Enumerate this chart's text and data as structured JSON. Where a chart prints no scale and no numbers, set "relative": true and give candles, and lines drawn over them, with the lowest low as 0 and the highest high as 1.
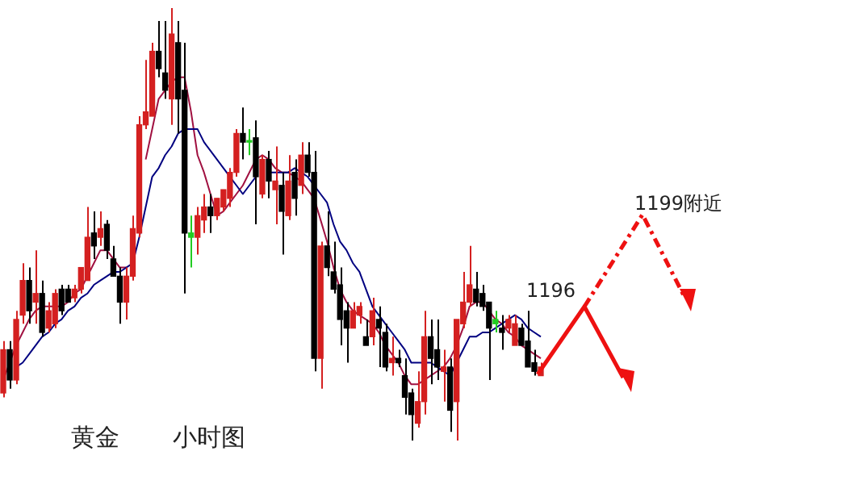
{
  "chart_data": {
    "type": "candlestick",
    "relative": true,
    "categories": [
      null,
      null,
      null,
      null,
      null,
      null,
      null,
      null,
      null,
      null,
      null,
      null,
      null,
      null,
      null,
      null,
      null,
      null,
      null,
      null,
      null,
      null,
      null,
      null,
      null,
      null,
      null,
      null,
      null,
      null,
      null,
      null,
      null,
      null,
      null,
      null,
      null,
      null,
      null,
      null,
      null,
      null,
      null,
      null,
      null,
      null,
      null,
      null,
      null,
      null,
      null,
      null,
      null,
      null,
      null,
      null,
      null,
      null,
      null,
      null,
      null,
      null,
      null,
      null,
      null,
      null,
      null,
      null,
      null,
      null,
      null,
      null,
      null,
      null,
      null,
      null,
      null,
      null,
      null,
      null,
      null,
      null,
      null,
      null
    ],
    "ohlc": [
      [
        0.11,
        0.23,
        0.1,
        0.21
      ],
      [
        0.21,
        0.23,
        0.12,
        0.14
      ],
      [
        0.14,
        0.3,
        0.13,
        0.28
      ],
      [
        0.29,
        0.41,
        0.27,
        0.37
      ],
      [
        0.37,
        0.4,
        0.27,
        0.3
      ],
      [
        0.32,
        0.44,
        0.27,
        0.34
      ],
      [
        0.34,
        0.37,
        0.24,
        0.25
      ],
      [
        0.26,
        0.32,
        0.25,
        0.3
      ],
      [
        0.27,
        0.35,
        0.26,
        0.34
      ],
      [
        0.35,
        0.36,
        0.29,
        0.3
      ],
      [
        0.35,
        0.36,
        0.32,
        0.32
      ],
      [
        0.33,
        0.36,
        0.32,
        0.35
      ],
      [
        0.35,
        0.4,
        0.34,
        0.4
      ],
      [
        0.37,
        0.54,
        0.37,
        0.47
      ],
      [
        0.48,
        0.53,
        0.42,
        0.45
      ],
      [
        0.47,
        0.53,
        0.45,
        0.49
      ],
      [
        0.5,
        0.51,
        0.42,
        0.44
      ],
      [
        0.42,
        0.45,
        0.38,
        0.38
      ],
      [
        0.38,
        0.4,
        0.27,
        0.32
      ],
      [
        0.32,
        0.4,
        0.28,
        0.38
      ],
      [
        0.38,
        0.52,
        0.37,
        0.49
      ],
      [
        0.48,
        0.75,
        0.47,
        0.73
      ],
      [
        0.73,
        0.88,
        0.72,
        0.76
      ],
      [
        0.75,
        0.92,
        0.75,
        0.9
      ],
      [
        0.9,
        0.97,
        0.84,
        0.86
      ],
      [
        0.85,
        0.97,
        0.79,
        0.81
      ],
      [
        0.79,
        1.0,
        0.73,
        0.94
      ],
      [
        0.92,
        0.97,
        0.71,
        0.79
      ],
      [
        0.81,
        0.92,
        0.34,
        0.48
      ],
      [
        0.47,
        0.52,
        0.4,
        0.48
      ],
      [
        0.47,
        0.54,
        0.43,
        0.52
      ],
      [
        0.51,
        0.57,
        0.48,
        0.54
      ],
      [
        0.54,
        0.57,
        0.48,
        0.52
      ],
      [
        0.52,
        0.56,
        0.51,
        0.56
      ],
      [
        0.54,
        0.58,
        0.53,
        0.58
      ],
      [
        0.56,
        0.63,
        0.54,
        0.62
      ],
      [
        0.62,
        0.72,
        0.61,
        0.71
      ],
      [
        0.71,
        0.77,
        0.65,
        0.69
      ],
      [
        0.69,
        0.72,
        0.66,
        0.69
      ],
      [
        0.7,
        0.74,
        0.5,
        0.61
      ],
      [
        0.57,
        0.66,
        0.56,
        0.65
      ],
      [
        0.65,
        0.67,
        0.56,
        0.6
      ],
      [
        0.58,
        0.68,
        0.5,
        0.6
      ],
      [
        0.59,
        0.62,
        0.43,
        0.53
      ],
      [
        0.52,
        0.66,
        0.51,
        0.6
      ],
      [
        0.62,
        0.65,
        0.52,
        0.56
      ],
      [
        0.59,
        0.69,
        0.57,
        0.66
      ],
      [
        0.66,
        0.69,
        0.61,
        0.62
      ],
      [
        0.62,
        0.67,
        0.16,
        0.19
      ],
      [
        0.19,
        0.46,
        0.12,
        0.45
      ],
      [
        0.45,
        0.53,
        0.38,
        0.4
      ],
      [
        0.39,
        0.46,
        0.34,
        0.35
      ],
      [
        0.36,
        0.4,
        0.22,
        0.28
      ],
      [
        0.3,
        0.32,
        0.18,
        0.26
      ],
      [
        0.26,
        0.32,
        0.26,
        0.3
      ],
      [
        0.29,
        0.32,
        0.27,
        0.31
      ],
      [
        0.24,
        0.28,
        0.22,
        0.22
      ],
      [
        0.24,
        0.33,
        0.22,
        0.3
      ],
      [
        0.28,
        0.31,
        0.17,
        0.26
      ],
      [
        0.25,
        0.27,
        0.16,
        0.17
      ],
      [
        0.18,
        0.24,
        0.15,
        0.19
      ],
      [
        0.19,
        0.21,
        0.17,
        0.18
      ],
      [
        0.15,
        0.19,
        0.06,
        0.1
      ],
      [
        0.11,
        0.12,
        0.0,
        0.06
      ],
      [
        0.04,
        0.16,
        0.03,
        0.09
      ],
      [
        0.09,
        0.3,
        0.06,
        0.24
      ],
      [
        0.24,
        0.28,
        0.13,
        0.19
      ],
      [
        0.21,
        0.28,
        0.14,
        0.17
      ],
      [
        0.16,
        0.21,
        0.09,
        0.17
      ],
      [
        0.17,
        0.19,
        0.02,
        0.07
      ],
      [
        0.09,
        0.28,
        0.0,
        0.28
      ],
      [
        0.27,
        0.39,
        0.26,
        0.32
      ],
      [
        0.32,
        0.45,
        0.31,
        0.36
      ],
      [
        0.35,
        0.39,
        0.31,
        0.32
      ],
      [
        0.34,
        0.36,
        0.3,
        0.31
      ],
      [
        0.32,
        0.32,
        0.14,
        0.26
      ],
      [
        0.27,
        0.3,
        0.25,
        0.28
      ],
      [
        0.26,
        0.29,
        0.21,
        0.25
      ],
      [
        0.26,
        0.29,
        0.25,
        0.28
      ],
      [
        0.22,
        0.29,
        0.22,
        0.27
      ],
      [
        0.26,
        0.27,
        0.22,
        0.22
      ],
      [
        0.23,
        0.3,
        0.17,
        0.17
      ],
      [
        0.18,
        0.21,
        0.15,
        0.16
      ],
      [
        0.15,
        0.18,
        0.15,
        0.17
      ]
    ],
    "colors": [
      "#d42020",
      "#000000",
      "#d42020",
      "#d42020",
      "#000000",
      "#d42020",
      "#000000",
      "#d42020",
      "#d42020",
      "#000000",
      "#000000",
      "#d42020",
      "#d42020",
      "#d42020",
      "#000000",
      "#d42020",
      "#000000",
      "#000000",
      "#000000",
      "#d42020",
      "#d42020",
      "#d42020",
      "#d42020",
      "#d42020",
      "#000000",
      "#000000",
      "#d42020",
      "#000000",
      "#000000",
      "#22cc22",
      "#d42020",
      "#d42020",
      "#000000",
      "#d42020",
      "#d42020",
      "#d42020",
      "#d42020",
      "#000000",
      "#22cc22",
      "#000000",
      "#d42020",
      "#000000",
      "#d42020",
      "#000000",
      "#d42020",
      "#000000",
      "#d42020",
      "#000000",
      "#000000",
      "#d42020",
      "#000000",
      "#000000",
      "#000000",
      "#000000",
      "#d42020",
      "#d42020",
      "#000000",
      "#d42020",
      "#000000",
      "#000000",
      "#d42020",
      "#000000",
      "#000000",
      "#000000",
      "#d42020",
      "#d42020",
      "#000000",
      "#000000",
      "#d42020",
      "#000000",
      "#d42020",
      "#d42020",
      "#d42020",
      "#000000",
      "#000000",
      "#000000",
      "#22cc22",
      "#000000",
      "#d42020",
      "#d42020",
      "#000000",
      "#000000",
      "#000000",
      "#d42020"
    ],
    "series": [
      {
        "type": "line",
        "color": "#000080",
        "values": [
          null,
          null,
          0.17,
          0.18,
          0.2,
          0.22,
          0.24,
          0.25,
          0.27,
          0.28,
          0.3,
          0.31,
          0.33,
          0.34,
          0.36,
          0.37,
          0.38,
          0.39,
          0.39,
          0.4,
          0.41,
          0.47,
          0.54,
          0.61,
          0.63,
          0.66,
          0.68,
          0.71,
          0.72,
          0.72,
          0.72,
          0.69,
          0.67,
          0.65,
          0.63,
          0.61,
          0.59,
          0.57,
          0.59,
          0.61,
          null,
          0.62,
          0.62,
          0.62,
          0.62,
          0.63,
          0.62,
          0.61,
          0.59,
          0.57,
          0.55,
          0.5,
          0.46,
          0.44,
          0.41,
          0.39,
          0.35,
          0.31,
          0.29,
          0.27,
          0.25,
          0.23,
          0.21,
          0.18,
          0.18,
          0.18,
          0.18,
          0.17,
          0.16,
          0.15,
          0.18,
          0.21,
          0.24,
          0.24,
          0.25,
          0.25,
          0.26,
          0.27,
          0.28,
          0.29,
          0.28,
          0.26,
          0.25,
          0.24
        ]
      },
      {
        "type": "line",
        "color": "#a01040",
        "values": [
          0.14,
          0.18,
          0.22,
          0.25,
          0.28,
          0.3,
          0.31,
          0.31,
          0.31,
          0.31,
          0.32,
          0.34,
          0.35,
          0.38,
          0.41,
          0.44,
          0.44,
          0.42,
          0.4,
          0.4,
          null,
          null,
          0.65,
          0.72,
          0.79,
          0.81,
          0.83,
          0.84,
          0.84,
          0.76,
          0.66,
          0.62,
          0.57,
          0.52,
          0.53,
          0.55,
          0.57,
          0.59,
          0.62,
          0.65,
          0.66,
          0.65,
          0.63,
          0.62,
          0.62,
          0.61,
          0.6,
          0.58,
          0.56,
          0.51,
          0.46,
          0.4,
          0.35,
          0.32,
          0.3,
          0.29,
          0.28,
          0.27,
          0.25,
          0.22,
          0.2,
          0.18,
          0.15,
          0.13,
          0.13,
          0.14,
          0.15,
          0.16,
          0.17,
          0.19,
          0.22,
          0.26,
          0.31,
          0.32,
          0.32,
          0.3,
          0.28,
          0.27,
          0.25,
          0.24,
          0.22,
          0.21,
          0.2,
          0.19
        ]
      }
    ],
    "annotations": [
      "1196",
      "1199附近",
      "黄金",
      "小时图"
    ]
  }
}
